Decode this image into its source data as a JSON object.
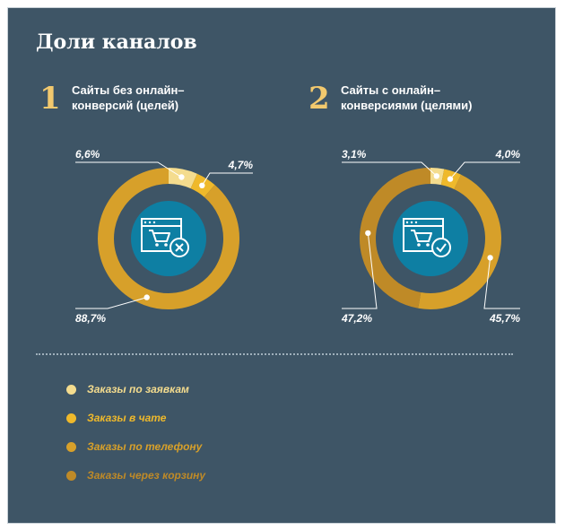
{
  "title": "Доли каналов",
  "panels": [
    {
      "number": "1",
      "title_line1": "Сайты без онлайн–",
      "title_line2": "конверсий (целей)",
      "status_icon": "close-icon"
    },
    {
      "number": "2",
      "title_line1": "Сайты с онлайн–",
      "title_line2": "конверсиями (целями)",
      "status_icon": "check-icon"
    }
  ],
  "legend": [
    {
      "label": "Заказы по заявкам",
      "color": "#f4dc8e"
    },
    {
      "label": "Заказы в чате",
      "color": "#efb92b"
    },
    {
      "label": "Заказы по телефону",
      "color": "#d7a02a"
    },
    {
      "label": "Заказы через корзину",
      "color": "#bf8a27"
    }
  ],
  "chart_data": [
    {
      "type": "pie",
      "donut": true,
      "categories": [
        "Заказы по заявкам",
        "Заказы в чате",
        "Заказы по телефону"
      ],
      "values": [
        6.6,
        4.7,
        88.7
      ],
      "labels": [
        "6,6%",
        "4,7%",
        "88,7%"
      ],
      "colors": [
        "#f4dc8e",
        "#efb92b",
        "#d7a02a"
      ]
    },
    {
      "type": "pie",
      "donut": true,
      "categories": [
        "Заказы по заявкам",
        "Заказы в чате",
        "Заказы по телефону",
        "Заказы через корзину"
      ],
      "values": [
        3.1,
        4.0,
        45.7,
        47.2
      ],
      "labels": [
        "3,1%",
        "4,0%",
        "45,7%",
        "47,2%"
      ],
      "colors": [
        "#f4dc8e",
        "#efb92b",
        "#d7a02a",
        "#bf8a27"
      ]
    }
  ]
}
